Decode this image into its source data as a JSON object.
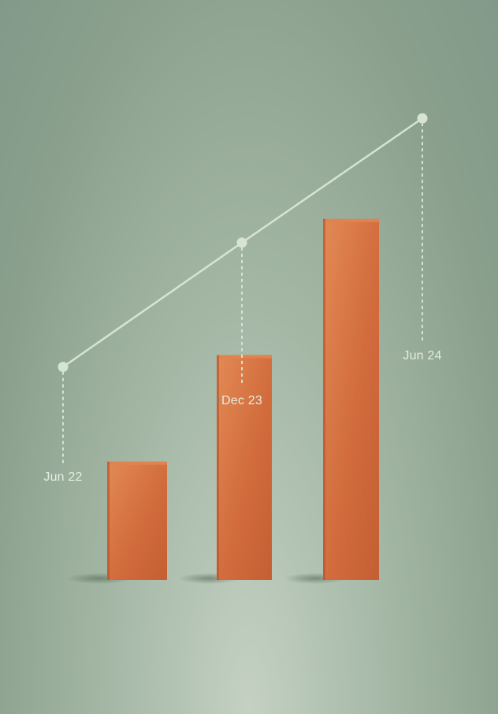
{
  "chart_data": {
    "type": "bar",
    "categories": [
      "Jun 22",
      "Dec 23",
      "Jun 24"
    ],
    "values": [
      2,
      3.8,
      6.1
    ],
    "line_values": [
      3.6,
      5.7,
      7.8
    ],
    "ylim": [
      0,
      9
    ],
    "title": "",
    "xlabel": "",
    "ylabel": "",
    "grid": false,
    "legend": "none",
    "colors": {
      "bar": "#d0683a",
      "bar_light": "#e0834e",
      "bar_dark": "#b9552c",
      "line": "#d6e4d4",
      "label": "#e4ede3",
      "background_top": "#82998a",
      "background_bottom": "#c4d1c3"
    }
  }
}
